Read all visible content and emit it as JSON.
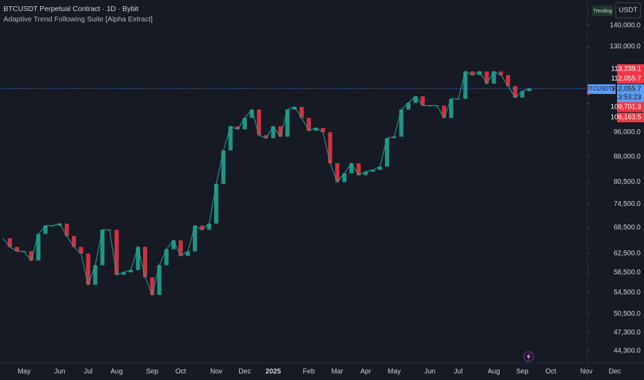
{
  "header": {
    "title": "BTCUSDT Perpetual Contract · 1D · Bybit",
    "indicator": "Adaptive Trend Following Suite [Alpha Extract]",
    "badge": "Trending",
    "currency": "USDT"
  },
  "chart_data": {
    "type": "line",
    "log_scale": true,
    "grid": false,
    "categories": [
      null,
      null,
      null,
      "May",
      null,
      null,
      null,
      null,
      "Jun",
      null,
      null,
      null,
      "Jul",
      null,
      null,
      null,
      "Aug",
      null,
      null,
      null,
      null,
      "Sep",
      null,
      null,
      null,
      "Oct",
      null,
      null,
      null,
      null,
      "Nov",
      null,
      null,
      null,
      "Dec",
      null,
      null,
      null,
      "2025",
      null,
      null,
      null,
      null,
      "Feb",
      null,
      null,
      null,
      "Mar",
      null,
      null,
      null,
      "Apr",
      null,
      null,
      null,
      "May",
      null,
      null,
      null,
      null,
      "Jun",
      null,
      null,
      null,
      "Jul",
      null,
      null,
      null,
      null,
      "Aug",
      null,
      null,
      null,
      "Sep",
      null,
      null,
      null,
      "Oct",
      null,
      null,
      null,
      null,
      "Nov",
      null,
      null,
      null,
      "Dec",
      null
    ],
    "values": [
      66000,
      64000,
      63000,
      63000,
      61000,
      67000,
      69000,
      69000,
      69500,
      66500,
      64000,
      62500,
      56000,
      60000,
      68000,
      68000,
      58000,
      58500,
      59000,
      64000,
      57500,
      54000,
      60000,
      63500,
      65500,
      62000,
      63000,
      69000,
      68000,
      69500,
      80000,
      90000,
      98000,
      97000,
      101000,
      104000,
      95000,
      94000,
      98000,
      94500,
      104000,
      105000,
      101000,
      96500,
      97500,
      96000,
      86000,
      80500,
      83000,
      86000,
      82500,
      83500,
      84000,
      85000,
      94000,
      94500,
      104000,
      106500,
      109000,
      105500,
      105500,
      105500,
      101000,
      108000,
      108000,
      119000,
      117500,
      119000,
      114000,
      119000,
      117500,
      113000,
      108500,
      111000,
      112055.7,
      null,
      null,
      null,
      null,
      null,
      null,
      null,
      null,
      null,
      null,
      null,
      null,
      null
    ],
    "up_color": "#22ab94",
    "down_color": "#f23645",
    "ylim": [
      42500,
      153200
    ],
    "yticks": [
      {
        "value": 140000,
        "label": "140,000.0"
      },
      {
        "value": 130000,
        "label": "130,000.0"
      },
      {
        "value": 96000,
        "label": "96,000.0"
      },
      {
        "value": 88000,
        "label": "88,000.0"
      },
      {
        "value": 80500,
        "label": "80,500.0"
      },
      {
        "value": 74500,
        "label": "74,500.0"
      },
      {
        "value": 68500,
        "label": "68,500.0"
      },
      {
        "value": 62500,
        "label": "62,500.0"
      },
      {
        "value": 58500,
        "label": "58,500.0"
      },
      {
        "value": 54500,
        "label": "54,500.0"
      },
      {
        "value": 50500,
        "label": "50,500.0"
      },
      {
        "value": 47300,
        "label": "47,300.0"
      },
      {
        "value": 44300,
        "label": "44,300.0"
      }
    ],
    "last_price": {
      "symbol": "BTCUSDT.P",
      "value": 112055.7,
      "label": "112,055.7",
      "countdown": "13:53:23",
      "color": "#5b9cf6"
    },
    "price_labels": [
      {
        "value": 113239.1,
        "label": "113,239.1",
        "color": "#f23645"
      },
      {
        "value": 112055.7,
        "label": "112,055.7",
        "color": "#f23645"
      },
      {
        "value": 109701.3,
        "label": "109,701.3",
        "color": "#f23645"
      },
      {
        "value": 106163.5,
        "label": "106,163.5",
        "color": "#f23645"
      }
    ]
  }
}
